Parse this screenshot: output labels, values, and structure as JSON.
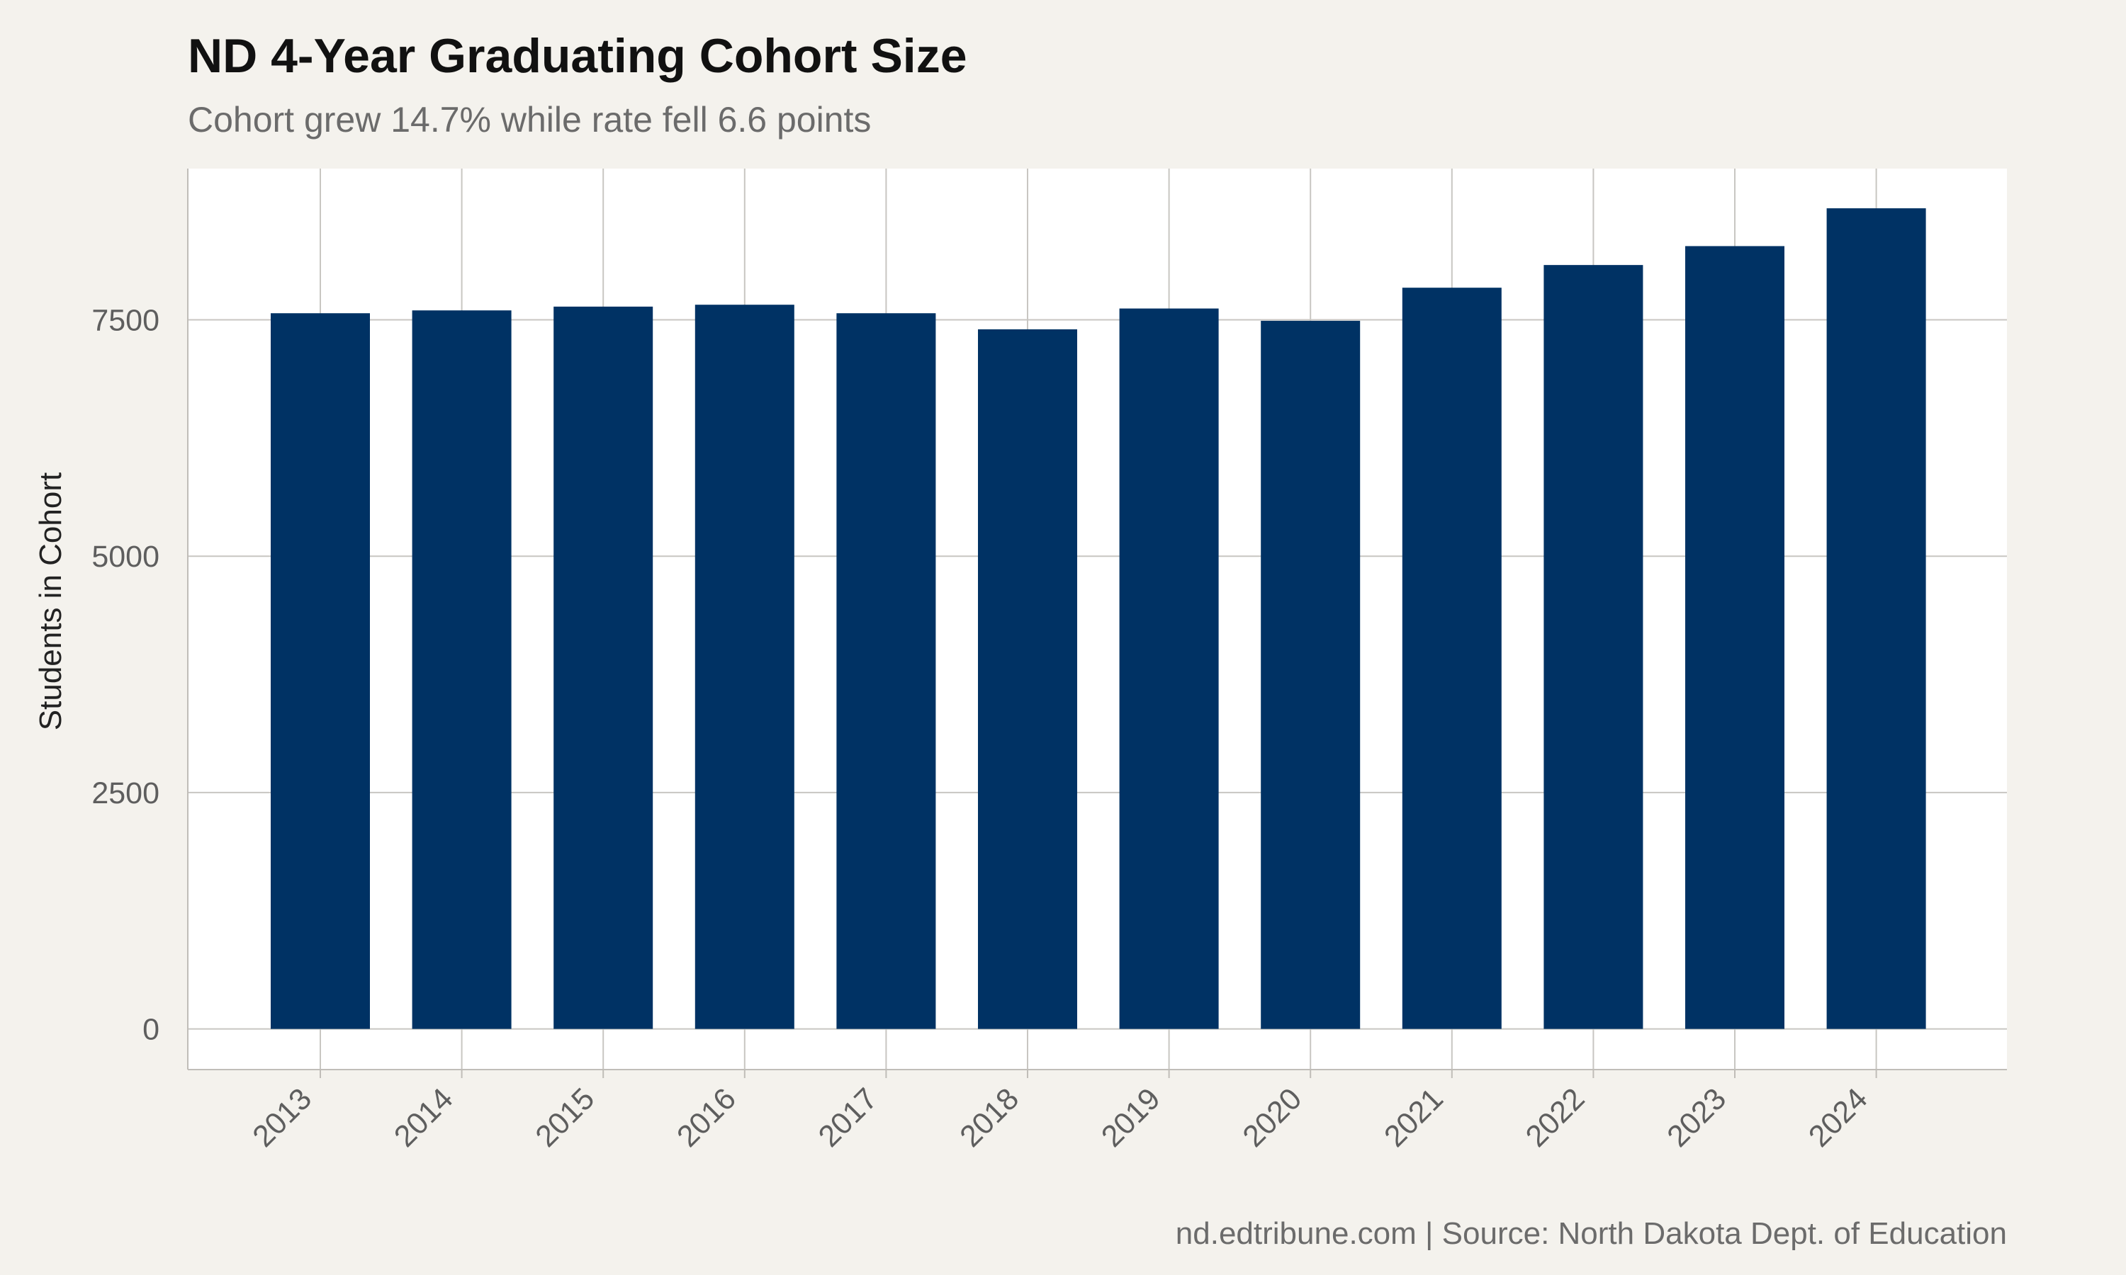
{
  "chart_data": {
    "type": "bar",
    "title": "ND 4-Year Graduating Cohort Size",
    "subtitle": "Cohort grew 14.7% while rate fell 6.6 points",
    "caption": "nd.edtribune.com | Source: North Dakota Dept. of Education",
    "xlabel": "",
    "ylabel": "Students in Cohort",
    "categories": [
      "2013",
      "2014",
      "2015",
      "2016",
      "2017",
      "2018",
      "2019",
      "2020",
      "2021",
      "2022",
      "2023",
      "2024"
    ],
    "values": [
      7570,
      7600,
      7640,
      7660,
      7570,
      7400,
      7620,
      7490,
      7840,
      8080,
      8280,
      8680
    ],
    "yticks": [
      0,
      2500,
      5000,
      7500
    ],
    "ylim": [
      -430,
      9100
    ],
    "grid": true,
    "legend": "none",
    "colors": {
      "bar": "#003264",
      "background": "#f4f2ed",
      "panel": "#ffffff",
      "grid": "#c8c6c2",
      "axis": "#c0bdb8"
    }
  }
}
